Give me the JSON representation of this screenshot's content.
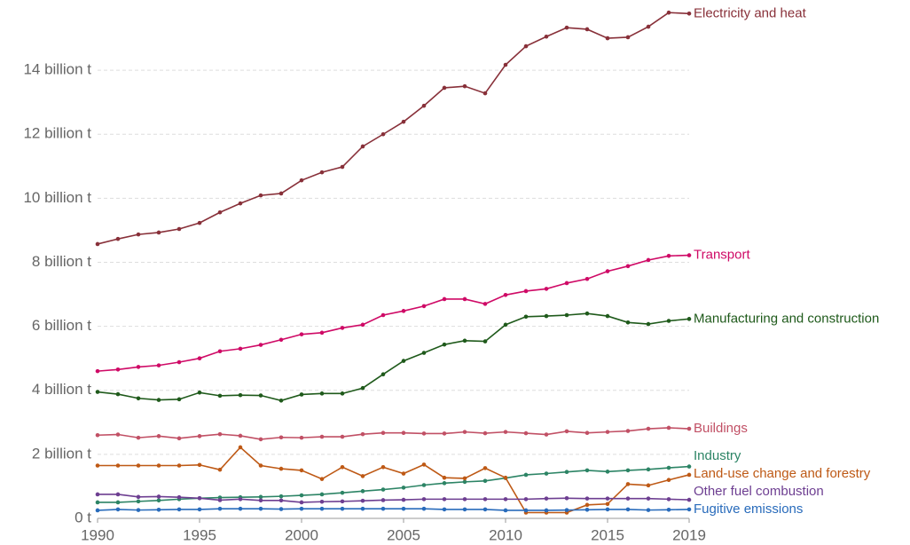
{
  "chart_data": {
    "type": "line",
    "x": [
      1990,
      1991,
      1992,
      1993,
      1994,
      1995,
      1996,
      1997,
      1998,
      1999,
      2000,
      2001,
      2002,
      2003,
      2004,
      2005,
      2006,
      2007,
      2008,
      2009,
      2010,
      2011,
      2012,
      2013,
      2014,
      2015,
      2016,
      2017,
      2018,
      2019
    ],
    "xlim": [
      1990,
      2019
    ],
    "xticks": [
      1990,
      1995,
      2000,
      2005,
      2010,
      2015,
      2019
    ],
    "ylim": [
      0,
      16
    ],
    "yticks": [
      {
        "value": 0,
        "label": "0 t"
      },
      {
        "value": 2,
        "label": "2 billion t"
      },
      {
        "value": 4,
        "label": "4 billion t"
      },
      {
        "value": 6,
        "label": "6 billion t"
      },
      {
        "value": 8,
        "label": "8 billion t"
      },
      {
        "value": 10,
        "label": "10 billion t"
      },
      {
        "value": 12,
        "label": "12 billion t"
      },
      {
        "value": 14,
        "label": "14 billion t"
      }
    ],
    "grid": true,
    "series": [
      {
        "name": "Electricity and heat",
        "color": "#883039",
        "values": [
          8.57,
          8.73,
          8.87,
          8.93,
          9.04,
          9.23,
          9.56,
          9.84,
          10.09,
          10.15,
          10.56,
          10.81,
          10.98,
          11.62,
          12.0,
          12.39,
          12.89,
          13.45,
          13.5,
          13.28,
          14.17,
          14.75,
          15.05,
          15.33,
          15.28,
          15.0,
          15.03,
          15.36,
          15.8,
          15.77
        ]
      },
      {
        "name": "Transport",
        "color": "#cf0a66",
        "values": [
          4.6,
          4.65,
          4.73,
          4.78,
          4.88,
          5.0,
          5.22,
          5.3,
          5.42,
          5.58,
          5.75,
          5.8,
          5.95,
          6.05,
          6.35,
          6.48,
          6.63,
          6.85,
          6.85,
          6.7,
          6.98,
          7.1,
          7.17,
          7.35,
          7.48,
          7.72,
          7.88,
          8.07,
          8.2,
          8.22
        ]
      },
      {
        "name": "Manufacturing and construction",
        "color": "#1f5a1b",
        "values": [
          3.95,
          3.88,
          3.75,
          3.7,
          3.72,
          3.93,
          3.83,
          3.85,
          3.84,
          3.68,
          3.87,
          3.9,
          3.9,
          4.07,
          4.5,
          4.92,
          5.17,
          5.43,
          5.55,
          5.53,
          6.05,
          6.3,
          6.32,
          6.35,
          6.4,
          6.32,
          6.12,
          6.07,
          6.17,
          6.23
        ]
      },
      {
        "name": "Buildings",
        "color": "#c15065",
        "values": [
          2.6,
          2.62,
          2.52,
          2.57,
          2.5,
          2.57,
          2.63,
          2.58,
          2.47,
          2.53,
          2.52,
          2.55,
          2.55,
          2.63,
          2.67,
          2.67,
          2.65,
          2.65,
          2.7,
          2.66,
          2.7,
          2.66,
          2.62,
          2.72,
          2.67,
          2.7,
          2.73,
          2.8,
          2.83,
          2.8
        ]
      },
      {
        "name": "Industry",
        "color": "#2c8465",
        "values": [
          0.5,
          0.5,
          0.53,
          0.56,
          0.6,
          0.63,
          0.65,
          0.66,
          0.67,
          0.69,
          0.72,
          0.75,
          0.8,
          0.85,
          0.9,
          0.96,
          1.04,
          1.1,
          1.14,
          1.17,
          1.26,
          1.36,
          1.4,
          1.45,
          1.5,
          1.46,
          1.5,
          1.53,
          1.58,
          1.62
        ]
      },
      {
        "name": "Land-use change and forestry",
        "color": "#be5915",
        "values": [
          1.65,
          1.65,
          1.65,
          1.65,
          1.65,
          1.67,
          1.52,
          2.22,
          1.65,
          1.55,
          1.5,
          1.23,
          1.6,
          1.32,
          1.6,
          1.4,
          1.68,
          1.27,
          1.25,
          1.57,
          1.27,
          0.18,
          0.18,
          0.18,
          0.42,
          0.45,
          1.07,
          1.03,
          1.2,
          1.36
        ]
      },
      {
        "name": "Other fuel combustion",
        "color": "#6d3e91",
        "values": [
          0.75,
          0.75,
          0.67,
          0.68,
          0.66,
          0.63,
          0.57,
          0.6,
          0.56,
          0.56,
          0.5,
          0.52,
          0.53,
          0.55,
          0.57,
          0.58,
          0.6,
          0.6,
          0.6,
          0.6,
          0.6,
          0.6,
          0.62,
          0.63,
          0.62,
          0.62,
          0.62,
          0.62,
          0.6,
          0.58
        ]
      },
      {
        "name": "Fugitive emissions",
        "color": "#286bbb",
        "values": [
          0.25,
          0.28,
          0.26,
          0.27,
          0.28,
          0.28,
          0.3,
          0.3,
          0.3,
          0.29,
          0.3,
          0.3,
          0.3,
          0.3,
          0.3,
          0.3,
          0.3,
          0.28,
          0.28,
          0.28,
          0.25,
          0.25,
          0.25,
          0.26,
          0.27,
          0.28,
          0.28,
          0.26,
          0.27,
          0.28
        ]
      }
    ]
  }
}
